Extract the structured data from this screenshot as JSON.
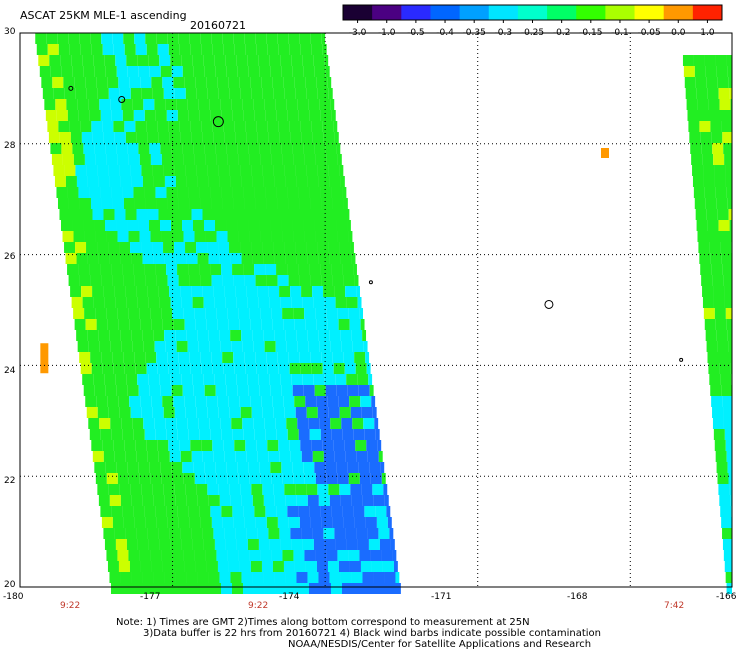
{
  "header": {
    "title": "ASCAT 25KM MLE-1 ascending",
    "date": "20160721"
  },
  "colorbar": {
    "ticks": [
      "-3.0",
      "-1.0",
      "-0.5",
      "-0.4",
      "-0.35",
      "-0.3",
      "-0.25",
      "-0.2",
      "-0.15",
      "-0.1",
      "-0.05",
      "0.0",
      "1.0"
    ],
    "colors": [
      "#1a0033",
      "#4b0082",
      "#2a2aff",
      "#0066ff",
      "#00a0ff",
      "#00e5ff",
      "#00ffcc",
      "#00ff66",
      "#33ff00",
      "#aaff00",
      "#ffff00",
      "#ff9900",
      "#ff2200"
    ]
  },
  "map": {
    "lon_range": [
      -180,
      -166
    ],
    "lat_range": [
      20,
      30
    ],
    "lat_ticks": [
      "30",
      "28",
      "26",
      "24",
      "22",
      "20"
    ],
    "lon_ticks": [
      "-180",
      "-177",
      "-174",
      "-171",
      "-168",
      "-166"
    ],
    "time_labels": [
      "9:22",
      "9:22",
      "7:42"
    ],
    "swaths": [
      {
        "name": "west-swath",
        "lon_west_top": -179.7,
        "lon_east_top": -174.0,
        "lon_west_bottom": -178.2,
        "lon_east_bottom": -172.5
      },
      {
        "name": "east-swath",
        "lon_west_top": -167.0,
        "lon_east_top": -166.0,
        "lon_west_bottom": -166.3,
        "lon_east_bottom": -166.0
      }
    ],
    "colors": {
      "green": "#22ee22",
      "cyan": "#00f0ff",
      "blue": "#1a6cff",
      "yellow": "#ccff00",
      "orange": "#ff9900"
    }
  },
  "notes": [
    "Note: 1) Times are GMT 2)Times along bottom correspond to measurement at 25N",
    "3)Data buffer is 22 hrs from 20160721 4) Black wind barbs indicate possible contamination",
    "NOAA/NESDIS/Center for Satellite Applications and Research"
  ]
}
